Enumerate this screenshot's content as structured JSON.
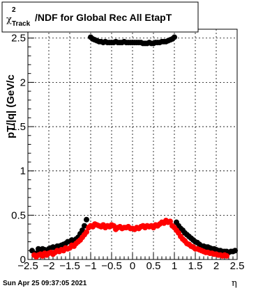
{
  "chart_data": {
    "type": "scatter",
    "title": {
      "chi": "χ",
      "sup": "2",
      "sub": "Track",
      "rest": "/NDF for Global Rec All EtapT"
    },
    "xlabel": "η",
    "ylabel": "pT/|q| (GeV/c",
    "xlim": [
      -2.5,
      2.5
    ],
    "ylim": [
      0,
      2.6
    ],
    "x_ticks": [
      -2.5,
      -2,
      -1.5,
      -1,
      -0.5,
      0,
      0.5,
      1,
      1.5,
      2,
      2.5
    ],
    "x_tick_labels": [
      "−2.5",
      "−2",
      "−1.5",
      "−1",
      "−0.5",
      "0",
      "0.5",
      "1",
      "1.5",
      "2",
      "2.5"
    ],
    "y_ticks": [
      0,
      0.5,
      1,
      1.5,
      2,
      2.5
    ],
    "y_tick_labels": [
      "0",
      "0.5",
      "1",
      "1.5",
      "2",
      "2.5"
    ],
    "grid": true,
    "series": [
      {
        "color": "#000000",
        "points": [
          [
            -2.4,
            0.1
          ],
          [
            -2.3,
            0.07
          ],
          [
            -2.25,
            0.12
          ],
          [
            -2.2,
            0.1
          ],
          [
            -2.15,
            0.12
          ],
          [
            -2.1,
            0.11
          ],
          [
            -2.05,
            0.1
          ],
          [
            -2.0,
            0.12
          ],
          [
            -1.95,
            0.13
          ],
          [
            -1.9,
            0.14
          ],
          [
            -1.85,
            0.13
          ],
          [
            -1.8,
            0.15
          ],
          [
            -1.75,
            0.15
          ],
          [
            -1.7,
            0.16
          ],
          [
            -1.65,
            0.17
          ],
          [
            -1.6,
            0.18
          ],
          [
            -1.55,
            0.2
          ],
          [
            -1.5,
            0.2
          ],
          [
            -1.45,
            0.22
          ],
          [
            -1.4,
            0.21
          ],
          [
            -1.35,
            0.23
          ],
          [
            -1.3,
            0.25
          ],
          [
            -1.25,
            0.29
          ],
          [
            -1.2,
            0.33
          ],
          [
            -1.15,
            0.38
          ],
          [
            -1.1,
            0.45
          ],
          [
            -1.0,
            2.51
          ],
          [
            -0.95,
            2.49
          ],
          [
            -0.9,
            2.48
          ],
          [
            -0.85,
            2.47
          ],
          [
            -0.8,
            2.46
          ],
          [
            -0.75,
            2.46
          ],
          [
            -0.7,
            2.45
          ],
          [
            -0.65,
            2.46
          ],
          [
            -0.6,
            2.45
          ],
          [
            -0.55,
            2.45
          ],
          [
            -0.5,
            2.45
          ],
          [
            -0.45,
            2.45
          ],
          [
            -0.4,
            2.46
          ],
          [
            -0.35,
            2.45
          ],
          [
            -0.3,
            2.45
          ],
          [
            -0.25,
            2.45
          ],
          [
            -0.2,
            2.46
          ],
          [
            -0.15,
            2.45
          ],
          [
            -0.1,
            2.45
          ],
          [
            -0.05,
            2.45
          ],
          [
            0.0,
            2.45
          ],
          [
            0.05,
            2.45
          ],
          [
            0.1,
            2.45
          ],
          [
            0.15,
            2.45
          ],
          [
            0.2,
            2.45
          ],
          [
            0.25,
            2.44
          ],
          [
            0.3,
            2.44
          ],
          [
            0.35,
            2.44
          ],
          [
            0.4,
            2.45
          ],
          [
            0.45,
            2.44
          ],
          [
            0.5,
            2.44
          ],
          [
            0.55,
            2.45
          ],
          [
            0.6,
            2.45
          ],
          [
            0.65,
            2.45
          ],
          [
            0.7,
            2.46
          ],
          [
            0.75,
            2.46
          ],
          [
            0.8,
            2.46
          ],
          [
            0.85,
            2.47
          ],
          [
            0.9,
            2.48
          ],
          [
            0.95,
            2.49
          ],
          [
            1.0,
            2.51
          ],
          [
            1.05,
            0.42
          ],
          [
            1.1,
            0.38
          ],
          [
            1.15,
            0.35
          ],
          [
            1.2,
            0.33
          ],
          [
            1.25,
            0.3
          ],
          [
            1.3,
            0.28
          ],
          [
            1.35,
            0.26
          ],
          [
            1.4,
            0.24
          ],
          [
            1.45,
            0.22
          ],
          [
            1.5,
            0.2
          ],
          [
            1.55,
            0.19
          ],
          [
            1.6,
            0.17
          ],
          [
            1.65,
            0.15
          ],
          [
            1.7,
            0.15
          ],
          [
            1.75,
            0.14
          ],
          [
            1.8,
            0.14
          ],
          [
            1.85,
            0.13
          ],
          [
            1.9,
            0.12
          ],
          [
            1.95,
            0.12
          ],
          [
            2.0,
            0.11
          ],
          [
            2.05,
            0.1
          ],
          [
            2.1,
            0.1
          ],
          [
            2.15,
            0.09
          ],
          [
            2.2,
            0.09
          ],
          [
            2.25,
            0.09
          ],
          [
            2.3,
            0.08
          ],
          [
            2.35,
            0.09
          ],
          [
            2.4,
            0.09
          ],
          [
            2.45,
            0.1
          ]
        ]
      },
      {
        "color": "#ff0000",
        "points": [
          [
            -2.35,
            0.05
          ],
          [
            -2.3,
            0.03
          ],
          [
            -2.25,
            0.05
          ],
          [
            -2.2,
            0.06
          ],
          [
            -2.15,
            0.04
          ],
          [
            -2.1,
            0.07
          ],
          [
            -2.05,
            0.05
          ],
          [
            -2.0,
            0.07
          ],
          [
            -1.95,
            0.08
          ],
          [
            -1.9,
            0.06
          ],
          [
            -1.85,
            0.08
          ],
          [
            -1.8,
            0.1
          ],
          [
            -1.75,
            0.09
          ],
          [
            -1.7,
            0.11
          ],
          [
            -1.65,
            0.1
          ],
          [
            -1.6,
            0.13
          ],
          [
            -1.55,
            0.12
          ],
          [
            -1.5,
            0.13
          ],
          [
            -1.45,
            0.16
          ],
          [
            -1.4,
            0.15
          ],
          [
            -1.35,
            0.18
          ],
          [
            -1.3,
            0.2
          ],
          [
            -1.25,
            0.22
          ],
          [
            -1.2,
            0.25
          ],
          [
            -1.15,
            0.28
          ],
          [
            -1.1,
            0.31
          ],
          [
            -1.05,
            0.36
          ],
          [
            -1.0,
            0.38
          ],
          [
            -0.95,
            0.37
          ],
          [
            -0.9,
            0.4
          ],
          [
            -0.85,
            0.39
          ],
          [
            -0.8,
            0.38
          ],
          [
            -0.75,
            0.37
          ],
          [
            -0.7,
            0.39
          ],
          [
            -0.65,
            0.36
          ],
          [
            -0.6,
            0.38
          ],
          [
            -0.55,
            0.37
          ],
          [
            -0.5,
            0.39
          ],
          [
            -0.45,
            0.38
          ],
          [
            -0.4,
            0.34
          ],
          [
            -0.35,
            0.36
          ],
          [
            -0.3,
            0.37
          ],
          [
            -0.25,
            0.35
          ],
          [
            -0.2,
            0.36
          ],
          [
            -0.15,
            0.36
          ],
          [
            -0.1,
            0.37
          ],
          [
            -0.05,
            0.35
          ],
          [
            0.0,
            0.35
          ],
          [
            0.05,
            0.34
          ],
          [
            0.1,
            0.36
          ],
          [
            0.15,
            0.35
          ],
          [
            0.2,
            0.37
          ],
          [
            0.25,
            0.38
          ],
          [
            0.3,
            0.36
          ],
          [
            0.35,
            0.38
          ],
          [
            0.4,
            0.37
          ],
          [
            0.45,
            0.38
          ],
          [
            0.5,
            0.36
          ],
          [
            0.55,
            0.39
          ],
          [
            0.6,
            0.38
          ],
          [
            0.65,
            0.4
          ],
          [
            0.7,
            0.42
          ],
          [
            0.75,
            0.41
          ],
          [
            0.8,
            0.44
          ],
          [
            0.85,
            0.42
          ],
          [
            0.9,
            0.43
          ],
          [
            0.95,
            0.38
          ],
          [
            1.0,
            0.36
          ],
          [
            1.05,
            0.33
          ],
          [
            1.1,
            0.3
          ],
          [
            1.15,
            0.26
          ],
          [
            1.2,
            0.23
          ],
          [
            1.25,
            0.21
          ],
          [
            1.3,
            0.18
          ],
          [
            1.35,
            0.17
          ],
          [
            1.4,
            0.15
          ],
          [
            1.45,
            0.14
          ],
          [
            1.5,
            0.12
          ],
          [
            1.55,
            0.12
          ],
          [
            1.6,
            0.11
          ],
          [
            1.65,
            0.1
          ],
          [
            1.7,
            0.09
          ],
          [
            1.75,
            0.08
          ],
          [
            1.8,
            0.08
          ],
          [
            1.85,
            0.07
          ],
          [
            1.9,
            0.07
          ],
          [
            1.95,
            0.06
          ],
          [
            2.0,
            0.06
          ],
          [
            2.05,
            0.05
          ],
          [
            2.1,
            0.05
          ],
          [
            2.15,
            0.04
          ],
          [
            2.2,
            0.05
          ],
          [
            2.25,
            0.04
          ]
        ]
      }
    ]
  },
  "footer": {
    "timestamp": "Sun Apr 25 09:37:05 2021"
  }
}
